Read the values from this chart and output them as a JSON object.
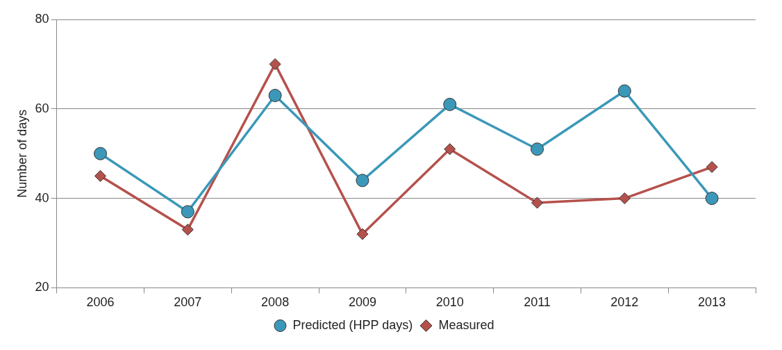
{
  "chart_data": {
    "type": "line",
    "ylabel": "Number of days",
    "categories": [
      "2006",
      "2007",
      "2008",
      "2009",
      "2010",
      "2011",
      "2012",
      "2013"
    ],
    "series": [
      {
        "name": "Predicted (HPP days)",
        "color": "#3b98b8",
        "marker": "circle",
        "values": [
          50,
          37,
          63,
          44,
          61,
          51,
          64,
          40
        ]
      },
      {
        "name": "Measured",
        "color": "#b5514c",
        "marker": "diamond",
        "values": [
          45,
          33,
          70,
          32,
          51,
          39,
          40,
          47
        ]
      }
    ],
    "ylim": [
      20,
      80
    ],
    "yticks": [
      20,
      40,
      60,
      80
    ],
    "grid": "y",
    "legend": "bottom",
    "line_style": "solid"
  }
}
